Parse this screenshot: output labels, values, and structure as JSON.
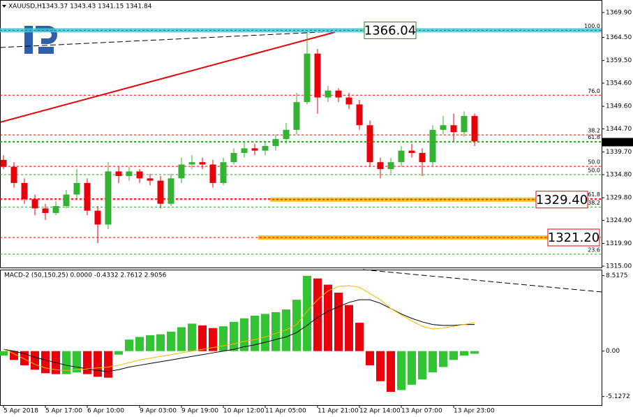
{
  "chart_data": [
    {
      "type": "candlestick",
      "title": "XAUUSD,H1",
      "subtitle": "1343.37 1343.43 1341.15 1341.84",
      "categories": [
        "5 Apr 2018",
        null,
        null,
        null,
        "5 Apr 17:00",
        null,
        null,
        null,
        "6 Apr 10:00",
        null,
        null,
        null,
        null,
        "9 Apr 03:00",
        null,
        null,
        null,
        "9 Apr 19:00",
        null,
        null,
        null,
        "10 Apr 12:00",
        null,
        null,
        null,
        "11 Apr 05:00",
        null,
        null,
        null,
        null,
        "11 Apr 21:00",
        null,
        null,
        null,
        "12 Apr 14:00",
        null,
        null,
        null,
        "13 Apr 07:00",
        null,
        null,
        null,
        null,
        "13 Apr 23:00",
        null,
        null
      ],
      "open": [
        1338.0,
        1336.5,
        1333.0,
        1329.5,
        1327.5,
        1326.5,
        1328.0,
        1330.5,
        1333.0,
        1327.0,
        1324.0,
        1335.5,
        1334.5,
        1335.5,
        1334.0,
        1333.5,
        1328.5,
        1334.0,
        1337.0,
        1337.5,
        1337.0,
        1333.0,
        1337.5,
        1339.5,
        1340.5,
        1340.0,
        1341.0,
        1342.5,
        1344.5,
        1350.5,
        1361.0,
        1351.5,
        1353.0,
        1351.5,
        1350.0,
        1345.5,
        1337.5,
        1336.0,
        1337.5,
        1340.0,
        1339.5,
        1337.5,
        1344.5,
        1345.5,
        1344.0,
        1347.5
      ],
      "high": [
        1339.0,
        1337.5,
        1334.0,
        1330.5,
        1328.5,
        1329.0,
        1331.5,
        1336.0,
        1334.0,
        1328.0,
        1337.5,
        1336.5,
        1336.5,
        1336.0,
        1335.0,
        1334.5,
        1335.0,
        1338.5,
        1339.0,
        1338.5,
        1338.0,
        1338.5,
        1340.5,
        1342.0,
        1341.5,
        1342.0,
        1343.5,
        1346.0,
        1352.5,
        1365.8,
        1362.0,
        1354.0,
        1353.5,
        1352.5,
        1351.0,
        1346.5,
        1338.5,
        1338.5,
        1341.0,
        1341.5,
        1340.5,
        1345.5,
        1347.5,
        1348.0,
        1348.5,
        1348.0
      ],
      "low": [
        1336.0,
        1332.0,
        1328.5,
        1326.0,
        1325.0,
        1326.0,
        1327.5,
        1329.5,
        1326.0,
        1320.0,
        1323.0,
        1333.0,
        1333.5,
        1333.0,
        1332.5,
        1327.5,
        1328.0,
        1333.0,
        1336.0,
        1336.0,
        1332.0,
        1332.5,
        1337.0,
        1338.5,
        1339.0,
        1339.0,
        1340.0,
        1341.5,
        1343.5,
        1350.0,
        1348.0,
        1350.5,
        1350.5,
        1349.0,
        1344.5,
        1336.5,
        1334.0,
        1335.0,
        1336.5,
        1338.5,
        1334.5,
        1336.5,
        1343.5,
        1342.0,
        1343.0,
        1341.0
      ],
      "close": [
        1336.5,
        1333.0,
        1329.5,
        1327.5,
        1326.5,
        1328.0,
        1330.5,
        1333.0,
        1327.0,
        1324.0,
        1335.5,
        1334.5,
        1335.5,
        1334.0,
        1333.5,
        1328.5,
        1334.0,
        1337.0,
        1337.5,
        1337.0,
        1333.0,
        1337.5,
        1339.5,
        1340.5,
        1340.0,
        1341.0,
        1342.5,
        1344.5,
        1350.5,
        1361.0,
        1351.5,
        1353.0,
        1351.5,
        1350.0,
        1345.5,
        1337.5,
        1336.0,
        1337.5,
        1340.0,
        1339.5,
        1337.5,
        1344.5,
        1345.5,
        1344.0,
        1347.5,
        1342.0
      ],
      "up_color": "#33b233",
      "down_color": "#e8000b",
      "ylim": [
        1314.7,
        1372.6
      ],
      "yticks": [
        {
          "value": 1369.9,
          "label": "1369.90"
        },
        {
          "value": 1364.5,
          "label": "1364.50"
        },
        {
          "value": 1359.5,
          "label": "1359.50"
        },
        {
          "value": 1354.6,
          "label": "1354.60"
        },
        {
          "value": 1349.6,
          "label": "1349.60"
        },
        {
          "value": 1344.7,
          "label": "1344.70"
        },
        {
          "value": 1339.7,
          "label": "1339.70"
        },
        {
          "value": 1334.8,
          "label": "1334.80"
        },
        {
          "value": 1329.8,
          "label": "1329.80"
        },
        {
          "value": 1324.9,
          "label": "1324.90"
        },
        {
          "value": 1319.9,
          "label": "1319.90"
        },
        {
          "value": 1315,
          "label": "1315.00"
        }
      ],
      "levels": [
        {
          "value": 1366.04,
          "label": "100.0",
          "color": "#2e9e2e"
        },
        {
          "value": 1352.0,
          "label": "76.0",
          "color": "#e8000b"
        },
        {
          "value": 1343.4,
          "label": "38.2",
          "color": "#e8000b"
        },
        {
          "value": 1342.0,
          "label": "61.8",
          "color": "#2e9e2e"
        },
        {
          "value": 1336.6,
          "label": "50.0",
          "color": "#e8000b"
        },
        {
          "value": 1334.8,
          "label": "50.0",
          "color": "#2e9e2e"
        },
        {
          "value": 1329.6,
          "label": "61.8",
          "color": "#e8000b"
        },
        {
          "value": 1327.8,
          "label": "38.2",
          "color": "#2e9e2e"
        },
        {
          "value": 1317.6,
          "label": "23.6",
          "color": "#2e9e2e"
        }
      ],
      "price_labels": [
        {
          "value": 1366.04,
          "label": "1366.04",
          "color": "#1f8a1f"
        },
        {
          "value": 1329.4,
          "label": "1329.40",
          "color": "#e8000b"
        },
        {
          "value": 1321.2,
          "label": "1321.20",
          "color": "#e8000b"
        }
      ],
      "current_price": {
        "value": 1341.84,
        "label": "1341.84"
      }
    },
    {
      "type": "macd",
      "title": "MACD-2 (50,150,25) 0.0000 -0.4332 2.7612 2.9056",
      "values": [
        -0.5,
        -1.0,
        -1.6,
        -2.1,
        -2.5,
        -2.6,
        -2.6,
        -2.4,
        -2.6,
        -2.9,
        -3.0,
        -0.4,
        1.3,
        1.6,
        1.8,
        1.9,
        2.2,
        2.7,
        3.1,
        2.9,
        2.6,
        2.8,
        3.3,
        3.7,
        4.0,
        4.2,
        4.4,
        4.7,
        5.8,
        8.5,
        8.2,
        7.5,
        6.6,
        5.2,
        3.2,
        -1.6,
        -3.4,
        -4.6,
        -4.4,
        -3.8,
        -3.2,
        -2.4,
        -1.8,
        -1.0,
        -0.5,
        -0.3
      ],
      "up_color": "#33c433",
      "down_color": "#e8000b",
      "lines": [
        {
          "color": "#000000",
          "values": [
            0.2,
            0.0,
            -0.3,
            -0.7,
            -1.0,
            -1.3,
            -1.6,
            -1.8,
            -2.0,
            -2.2,
            -2.3,
            -2.1,
            -1.8,
            -1.6,
            -1.4,
            -1.2,
            -1.0,
            -0.8,
            -0.6,
            -0.4,
            -0.2,
            0.0,
            0.2,
            0.5,
            0.7,
            1.0,
            1.3,
            1.6,
            2.1,
            2.9,
            3.8,
            4.5,
            5.0,
            5.5,
            5.8,
            5.8,
            5.4,
            4.8,
            4.2,
            3.7,
            3.3,
            3.0,
            2.9,
            2.9,
            3.0,
            3.0
          ]
        },
        {
          "color": "#f5b800",
          "values": [
            0.2,
            -0.3,
            -0.9,
            -1.5,
            -1.9,
            -2.1,
            -2.2,
            -2.1,
            -2.0,
            -1.9,
            -1.8,
            -1.6,
            -1.3,
            -1.0,
            -0.8,
            -0.6,
            -0.4,
            -0.2,
            0.0,
            0.2,
            0.4,
            0.6,
            0.8,
            1.1,
            1.3,
            1.6,
            2.0,
            2.4,
            3.0,
            4.5,
            5.8,
            6.8,
            7.3,
            7.4,
            7.2,
            6.5,
            5.8,
            4.8,
            4.1,
            3.4,
            2.8,
            2.5,
            2.6,
            2.8,
            3.0,
            3.2
          ]
        }
      ],
      "ylim": [
        -6.1,
        9.2
      ],
      "yticks": [
        8.5175,
        {
          "value": 0,
          "label": "0.00"
        },
        -5.1272
      ]
    }
  ]
}
